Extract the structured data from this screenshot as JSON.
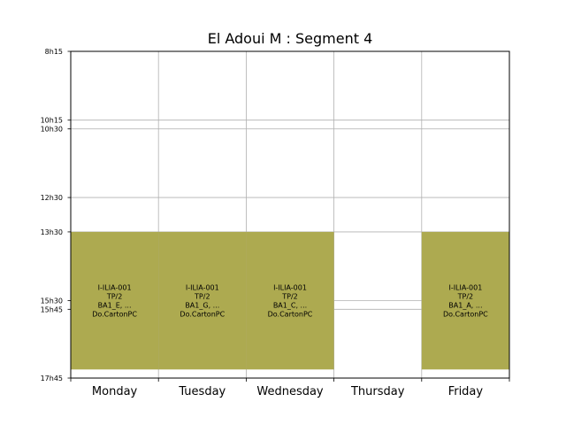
{
  "chart_data": {
    "type": "timetable",
    "title": "El Adoui M : Segment 4",
    "days": [
      "Monday",
      "Tuesday",
      "Wednesday",
      "Thursday",
      "Friday"
    ],
    "y_ticks": [
      {
        "label": "8h15",
        "hours": 8.25
      },
      {
        "label": "10h15",
        "hours": 10.25
      },
      {
        "label": "10h30",
        "hours": 10.5
      },
      {
        "label": "12h30",
        "hours": 12.5
      },
      {
        "label": "13h30",
        "hours": 13.5
      },
      {
        "label": "15h30",
        "hours": 15.5
      },
      {
        "label": "15h45",
        "hours": 15.75
      },
      {
        "label": "17h45",
        "hours": 17.75
      }
    ],
    "ylim": [
      8.25,
      17.75
    ],
    "event_color": "#adaa50",
    "events": [
      {
        "day": "Monday",
        "start": 13.5,
        "end": 17.5,
        "lines": [
          "I-ILIA-001",
          "TP/2",
          "BA1_E, ...",
          "Do.CartonPC"
        ]
      },
      {
        "day": "Tuesday",
        "start": 13.5,
        "end": 17.5,
        "lines": [
          "I-ILIA-001",
          "TP/2",
          "BA1_G, ...",
          "Do.CartonPC"
        ]
      },
      {
        "day": "Wednesday",
        "start": 13.5,
        "end": 17.5,
        "lines": [
          "I-ILIA-001",
          "TP/2",
          "BA1_C, ...",
          "Do.CartonPC"
        ]
      },
      {
        "day": "Friday",
        "start": 13.5,
        "end": 17.5,
        "lines": [
          "I-ILIA-001",
          "TP/2",
          "BA1_A, ...",
          "Do.CartonPC"
        ]
      }
    ]
  }
}
